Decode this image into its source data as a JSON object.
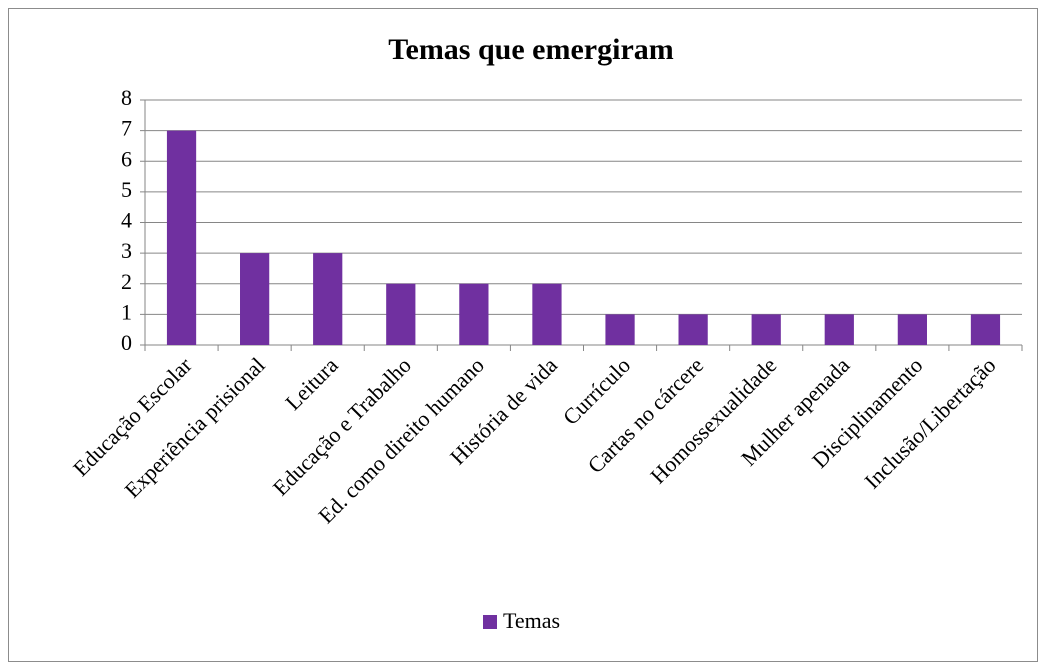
{
  "chart_data": {
    "type": "bar",
    "title": "Temas que emergiram",
    "categories": [
      "Educação Escolar",
      "Experiência prisional",
      "Leitura",
      "Educação e Trabalho",
      "Ed. como direito humano",
      "História de vida",
      "Currículo",
      "Cartas no cárcere",
      "Homossexualidade",
      "Mulher apenada",
      "Disciplinamento",
      "Inclusão/Libertação"
    ],
    "series": [
      {
        "name": "Temas",
        "color": "#7030a0",
        "values": [
          7,
          3,
          3,
          2,
          2,
          2,
          1,
          1,
          1,
          1,
          1,
          1
        ]
      }
    ],
    "ylim": [
      0,
      8
    ],
    "yticks": [
      0,
      1,
      2,
      3,
      4,
      5,
      6,
      7,
      8
    ],
    "grid": true,
    "legend": "bottom"
  }
}
